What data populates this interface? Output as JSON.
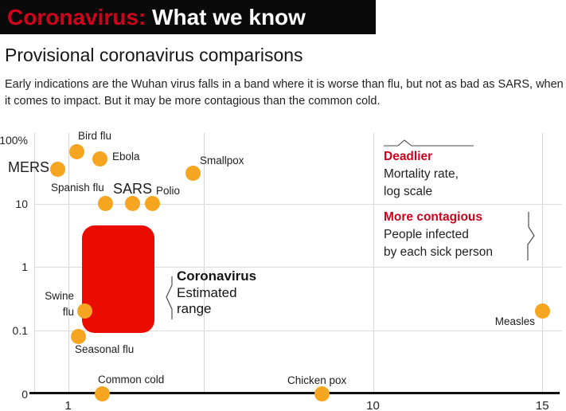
{
  "header": {
    "title_red": "Coronavirus:",
    "title_white": "What we know"
  },
  "subtitle": "Provisional coronavirus comparisons",
  "description": "Early indications are the Wuhan virus falls in a band where it is worse than flu, but not as bad as SARS, when it comes to impact. But it may be more contagious than the common cold.",
  "colors": {
    "accent_red": "#d0021b",
    "band_red": "#ea0b01",
    "dot_orange": "#f5a51f",
    "bar_black": "#0a0a0a"
  },
  "annotations": {
    "deadlier_head": "Deadlier",
    "deadlier_line1": "Mortality rate,",
    "deadlier_line2": "log scale",
    "contagious_head": "More contagious",
    "contagious_line1": "People infected",
    "contagious_line2": "by each sick person",
    "range_head": "Coronavirus",
    "range_line1": "Estimated",
    "range_line2": "range"
  },
  "chart_data": {
    "type": "scatter",
    "x_axis": {
      "scale": "linear",
      "meaning": "People infected by each sick person",
      "ticks": [
        {
          "label": "1",
          "value": 1
        },
        {
          "label": "10",
          "value": 10
        },
        {
          "label": "15",
          "value": 15
        }
      ],
      "range": [
        0,
        15.6
      ]
    },
    "y_axis": {
      "scale": "log",
      "meaning": "Mortality rate, log scale",
      "ticks": [
        {
          "label": "100%",
          "value": 100
        },
        {
          "label": "10",
          "value": 10
        },
        {
          "label": "1",
          "value": 1
        },
        {
          "label": "0.1",
          "value": 0.1
        },
        {
          "label": "0",
          "value": 0
        }
      ]
    },
    "points": [
      {
        "id": "mers",
        "label": "MERS",
        "x": 0.7,
        "y": 35
      },
      {
        "id": "bird_flu",
        "label": "Bird flu",
        "x": 1.25,
        "y": 65
      },
      {
        "id": "ebola",
        "label": "Ebola",
        "x": 1.95,
        "y": 50
      },
      {
        "id": "smallpox",
        "label": "Smallpox",
        "x": 4.7,
        "y": 30
      },
      {
        "id": "spanish_flu",
        "label": "Spanish flu",
        "x": 2.1,
        "y": 10
      },
      {
        "id": "sars",
        "label": "SARS",
        "x": 2.9,
        "y": 10
      },
      {
        "id": "polio",
        "label": "Polio",
        "x": 3.5,
        "y": 10
      },
      {
        "id": "swine_flu",
        "label": "Swine flu",
        "x": 1.5,
        "y": 0.2
      },
      {
        "id": "seasonal_flu",
        "label": "Seasonal flu",
        "x": 1.3,
        "y": 0.08
      },
      {
        "id": "common_cold",
        "label": "Common cold",
        "x": 2.0,
        "y": 0
      },
      {
        "id": "chicken_pox",
        "label": "Chicken pox",
        "x": 8.5,
        "y": 0
      },
      {
        "id": "measles",
        "label": "Measles",
        "x": 15,
        "y": 0.2
      }
    ],
    "coronavirus_range": {
      "x": [
        1.4,
        3.55
      ],
      "y_pct": [
        0.09,
        4.5
      ]
    }
  }
}
